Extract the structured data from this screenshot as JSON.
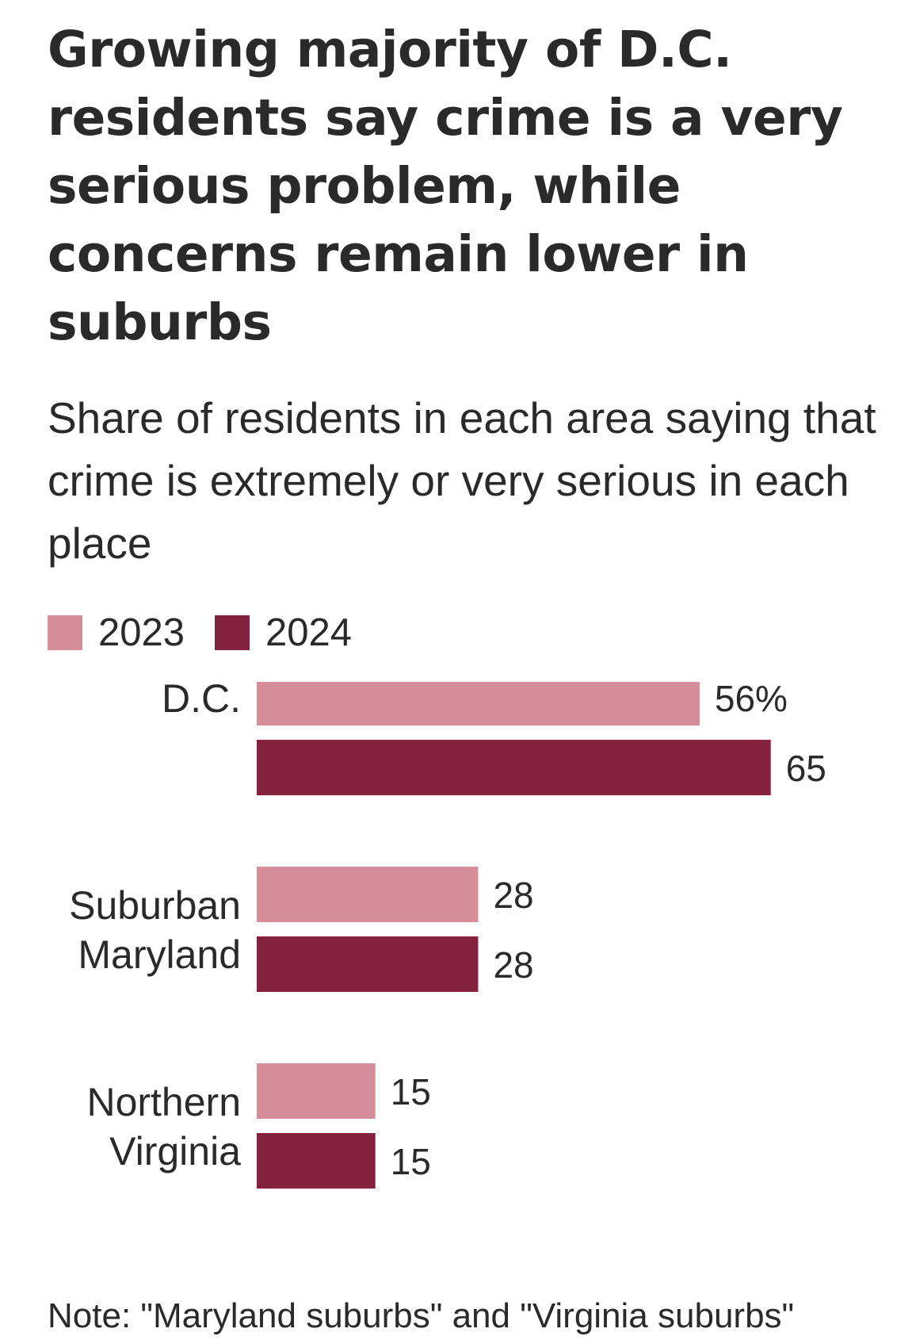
{
  "chart_data": {
    "type": "bar",
    "orientation": "horizontal",
    "title": "Growing majority of D.C. residents say crime is a very serious problem, while concerns remain lower in suburbs",
    "subtitle": "Share of residents in each area saying that crime is extremely or very serious in each place",
    "categories": [
      [
        "D.C."
      ],
      [
        "Suburban",
        "Maryland"
      ],
      [
        "Northern",
        "Virginia"
      ]
    ],
    "series": [
      {
        "name": "2023",
        "color": "#d48d99",
        "values": [
          56,
          28,
          15
        ],
        "labels": [
          "56%",
          "28",
          "15"
        ]
      },
      {
        "name": "2024",
        "color": "#85223f",
        "values": [
          65,
          28,
          15
        ],
        "labels": [
          "65",
          "28",
          "15"
        ]
      }
    ],
    "xlim": [
      0,
      65
    ],
    "grid": false,
    "legend_position": "top-left"
  },
  "note": "Note: \"Maryland suburbs\" and \"Virginia suburbs\""
}
